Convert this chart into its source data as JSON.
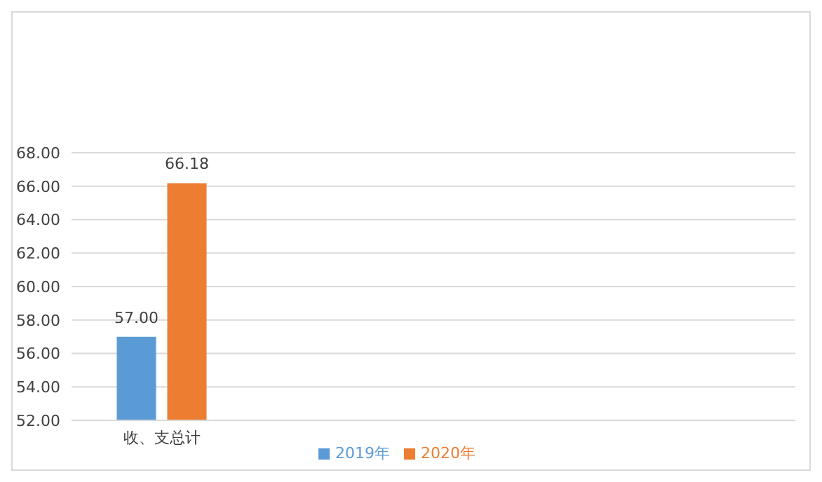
{
  "chart_data": {
    "type": "bar",
    "categories": [
      "收、支总计",
      null,
      null,
      null
    ],
    "series": [
      {
        "name": "2019年",
        "color": "#5b9bd5",
        "values": [
          57.0,
          null,
          null,
          null
        ],
        "value_labels": [
          "57.00",
          null,
          null,
          null
        ]
      },
      {
        "name": "2020年",
        "color": "#ed7d31",
        "values": [
          66.18,
          null,
          null,
          null
        ],
        "value_labels": [
          "66.18",
          null,
          null,
          null
        ]
      }
    ],
    "ylim": [
      52,
      68
    ],
    "yticks": [
      {
        "value": 52,
        "label": "52.00"
      },
      {
        "value": 54,
        "label": "54.00"
      },
      {
        "value": 56,
        "label": "56.00"
      },
      {
        "value": 58,
        "label": "58.00"
      },
      {
        "value": 60,
        "label": "60.00"
      },
      {
        "value": 62,
        "label": "62.00"
      },
      {
        "value": 64,
        "label": "64.00"
      },
      {
        "value": 66,
        "label": "66.00"
      },
      {
        "value": 68,
        "label": "68.00"
      }
    ],
    "grid": "y",
    "legend": "bottom"
  }
}
